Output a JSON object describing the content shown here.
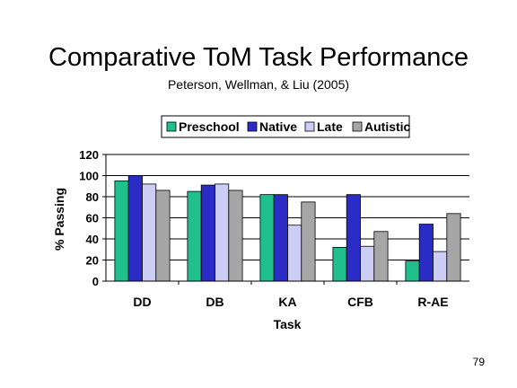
{
  "slide": {
    "title": "Comparative ToM Task Performance",
    "subtitle": "Peterson, Wellman, & Liu (2005)",
    "page_number": "79"
  },
  "chart_data": {
    "type": "bar",
    "categories": [
      "DD",
      "DB",
      "KA",
      "CFB",
      "R-AE"
    ],
    "series": [
      {
        "name": "Preschool",
        "color": "#1fc08c",
        "values": [
          95,
          85,
          82,
          32,
          19
        ]
      },
      {
        "name": "Native",
        "color": "#2b2bc6",
        "values": [
          100,
          91,
          82,
          82,
          54
        ]
      },
      {
        "name": "Late",
        "color": "#cccdf5",
        "values": [
          92,
          92,
          53,
          33,
          28
        ]
      },
      {
        "name": "Autistic",
        "color": "#a6a6a6",
        "values": [
          86,
          86,
          75,
          47,
          64
        ]
      }
    ],
    "xlabel": "Task",
    "ylabel": "% Passing",
    "ylim": [
      0,
      120
    ],
    "yticks": [
      0,
      20,
      40,
      60,
      80,
      100,
      120
    ],
    "grid": true,
    "legend_position": "top"
  }
}
